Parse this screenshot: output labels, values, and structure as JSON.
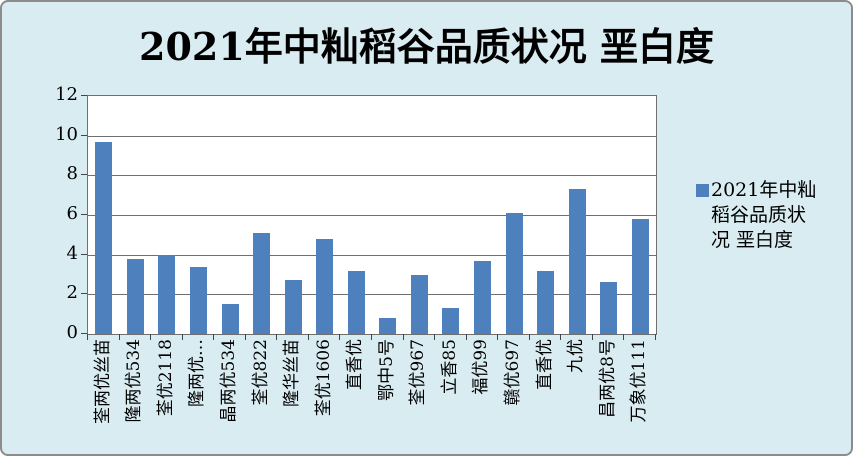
{
  "title": "2021年中籼稻谷品质状况 垩白度",
  "legend": {
    "lines": [
      "2021年中籼",
      "稻谷品质状",
      "况 垩白度"
    ]
  },
  "colors": {
    "background": "#d9ecf2",
    "bar": "#4d80bd",
    "grid": "#6f6f6f",
    "frame_border": "#8c8c8c",
    "text": "#000000"
  },
  "chart_data": {
    "type": "bar",
    "title": "2021年中籼稻谷品质状况 垩白度",
    "categories": [
      "荃两优丝苗",
      "隆两优534",
      "荃优2118",
      "隆两优…",
      "晶两优534",
      "荃优822",
      "隆华丝苗",
      "荃优1606",
      "直香优",
      "鄂中5号",
      "荃优967",
      "立香85",
      "福优99",
      "赣优697",
      "直香优",
      "九优",
      "昌两优8号",
      "万象优111"
    ],
    "values": [
      9.7,
      3.8,
      4.0,
      3.4,
      1.5,
      5.1,
      2.7,
      4.8,
      3.2,
      0.8,
      3.0,
      1.3,
      3.7,
      6.1,
      3.2,
      7.3,
      2.6,
      5.8
    ],
    "series_name": "2021年中籼稻谷品质状况 垩白度",
    "xlabel": "",
    "ylabel": "",
    "ylim": [
      0,
      12
    ],
    "yticks": [
      0,
      2,
      4,
      6,
      8,
      10,
      12
    ],
    "grid": true,
    "legend_position": "right",
    "x_tick_label_rotation": 90
  }
}
